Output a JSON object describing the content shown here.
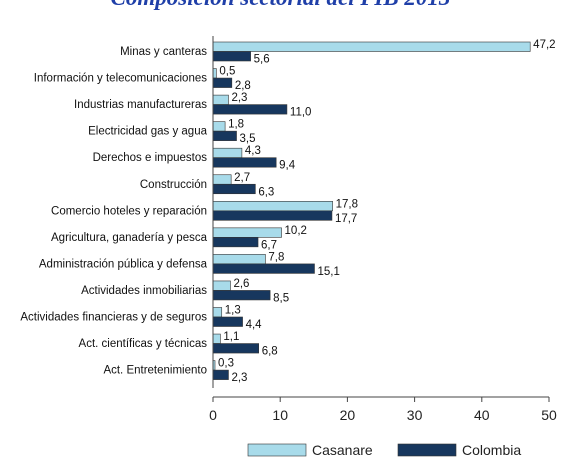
{
  "chart_data": {
    "type": "bar",
    "orientation": "horizontal",
    "title": "Composición sectorial del PIB 2013",
    "categories": [
      "Minas y canteras",
      "Información y telecomunicaciones",
      "Industrias manufactureras",
      "Electricidad gas y agua",
      "Derechos e impuestos",
      "Construcción",
      "Comercio hoteles y reparación",
      "Agricultura, ganadería y pesca",
      "Administración pública y defensa",
      "Actividades inmobiliarias",
      "Actividades financieras y de seguros",
      "Act. científicas y técnicas",
      "Act. Entretenimiento"
    ],
    "series": [
      {
        "name": "Casanare",
        "color": "#a8dbea",
        "values": [
          47.2,
          0.5,
          2.3,
          1.8,
          4.3,
          2.7,
          17.8,
          10.2,
          7.8,
          2.6,
          1.3,
          1.1,
          0.3
        ],
        "labels": [
          "47,2",
          "0,5",
          "2,3",
          "1,8",
          "4,3",
          "2,7",
          "17,8",
          "10,2",
          "7,8",
          "2,6",
          "1,3",
          "1,1",
          "0,3"
        ]
      },
      {
        "name": "Colombia",
        "color": "#17375e",
        "values": [
          5.6,
          2.8,
          11.0,
          3.5,
          9.4,
          6.3,
          17.7,
          6.7,
          15.1,
          8.5,
          4.4,
          6.8,
          2.3
        ],
        "labels": [
          "5,6",
          "2,8",
          "11,0",
          "3,5",
          "9,4",
          "6,3",
          "17,7",
          "6,7",
          "15,1",
          "8,5",
          "4,4",
          "6,8",
          "2,3"
        ]
      }
    ],
    "xlim": [
      0,
      50
    ],
    "xticks": [
      "0",
      "10",
      "20",
      "30",
      "40",
      "50"
    ],
    "grid": false,
    "legend_position": "bottom"
  }
}
